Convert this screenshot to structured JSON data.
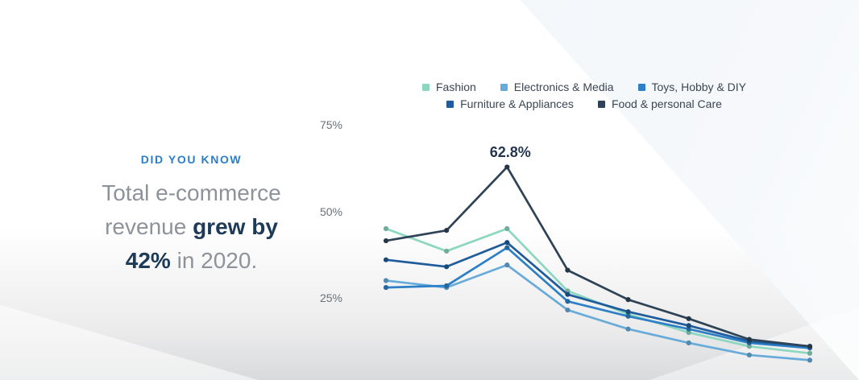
{
  "slide": {
    "kicker": "DID YOU KNOW",
    "headline": {
      "l1": "Total e-commerce",
      "l2a": "revenue ",
      "l2b": "grew by",
      "l3a": "42%",
      "l3b": " in 2020."
    },
    "accent_color": "#2b7ec8",
    "headline_bold_color": "#1d3a57",
    "headline_regular_color": "#8d929b"
  },
  "chart_data": {
    "type": "line",
    "x": [
      1,
      2,
      3,
      4,
      5,
      6,
      7,
      8
    ],
    "x_axis_labels_visible": false,
    "series": [
      {
        "name": "Fashion",
        "color": "#8cd7c0",
        "values": [
          45,
          38.5,
          45,
          27,
          20.3,
          15,
          11,
          9
        ]
      },
      {
        "name": "Electronics & Media",
        "color": "#67abda",
        "values": [
          30,
          28,
          34.5,
          21.5,
          16,
          12,
          8.5,
          7
        ]
      },
      {
        "name": "Toys, Hobby & DIY",
        "color": "#2d7fc6",
        "values": [
          28,
          28.5,
          39.5,
          24,
          19.7,
          16,
          12,
          10.5
        ]
      },
      {
        "name": "Furniture & Appliances",
        "color": "#1e5c9b",
        "values": [
          36,
          34,
          41,
          26,
          21,
          17,
          12.5,
          11
        ]
      },
      {
        "name": "Food & personal Care",
        "color": "#2e4356",
        "values": [
          41.5,
          44.5,
          62.8,
          33,
          24.5,
          19,
          13,
          11
        ]
      }
    ],
    "yticks": [
      {
        "label": "75%",
        "value": 75
      },
      {
        "label": "50%",
        "value": 50
      },
      {
        "label": "25%",
        "value": 25
      }
    ],
    "ylim": [
      0,
      80
    ],
    "grid": false,
    "legend_position": "top",
    "legend_rows": [
      3,
      2
    ],
    "annotation": {
      "text": "62.8%",
      "series": "Food & personal Care",
      "x_index": 2,
      "value": 62.8
    }
  }
}
